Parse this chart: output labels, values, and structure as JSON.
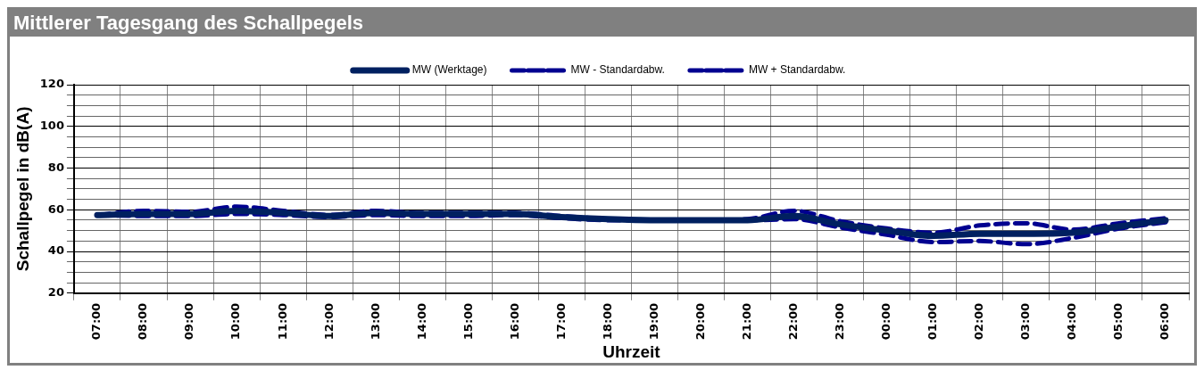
{
  "chart_data": {
    "type": "line",
    "title": "Mittlerer Tagesgang des Schallpegels",
    "xlabel": "Uhrzeit",
    "ylabel": "Schallpegel in dB(A)",
    "categories": [
      "07:00",
      "08:00",
      "09:00",
      "10:00",
      "11:00",
      "12:00",
      "13:00",
      "14:00",
      "15:00",
      "16:00",
      "17:00",
      "18:00",
      "19:00",
      "20:00",
      "21:00",
      "22:00",
      "23:00",
      "00:00",
      "01:00",
      "02:00",
      "03:00",
      "04:00",
      "05:00",
      "06:00"
    ],
    "series": [
      {
        "name": "MW (Werktage)",
        "color": "#002060",
        "line_style": "solid",
        "values": [
          57.5,
          58,
          58,
          59.5,
          58.5,
          57,
          58.5,
          58,
          58,
          58,
          56.5,
          55.5,
          55,
          55,
          55,
          57,
          53,
          50,
          47.5,
          48.5,
          48.5,
          49,
          52,
          55
        ]
      },
      {
        "name": "MW - Standardabw.",
        "color": "#000090",
        "line_style": "dashed",
        "values": [
          57.5,
          57,
          57,
          58,
          57.5,
          56.5,
          57.5,
          57,
          57,
          57.5,
          56,
          55,
          55,
          55,
          55,
          55.5,
          51.5,
          48,
          44.5,
          45,
          43.5,
          46.5,
          51,
          54
        ]
      },
      {
        "name": "MW + Standardabw.",
        "color": "#000090",
        "line_style": "dashed",
        "values": [
          57.5,
          59.5,
          59,
          61.5,
          59.5,
          57.5,
          59.5,
          58.5,
          58.5,
          58.5,
          57,
          55.5,
          55,
          55,
          55.5,
          59.5,
          54.5,
          51,
          49,
          52.5,
          53.5,
          50.5,
          53.5,
          56
        ]
      }
    ],
    "ylim": [
      20,
      120
    ],
    "yticks": [
      20,
      {
        "value": 25,
        "label": null
      },
      {
        "value": 30,
        "label": null
      },
      {
        "value": 35,
        "label": null
      },
      40,
      {
        "value": 45,
        "label": null
      },
      {
        "value": 50,
        "label": null
      },
      {
        "value": 55,
        "label": null
      },
      60,
      {
        "value": 65,
        "label": null
      },
      {
        "value": 70,
        "label": null
      },
      {
        "value": 75,
        "label": null
      },
      80,
      {
        "value": 85,
        "label": null
      },
      {
        "value": 90,
        "label": null
      },
      {
        "value": 95,
        "label": null
      },
      100,
      {
        "value": 105,
        "label": null
      },
      {
        "value": 110,
        "label": null
      },
      {
        "value": 115,
        "label": null
      },
      120
    ],
    "grid": true,
    "legend": "top",
    "marker": "none"
  }
}
